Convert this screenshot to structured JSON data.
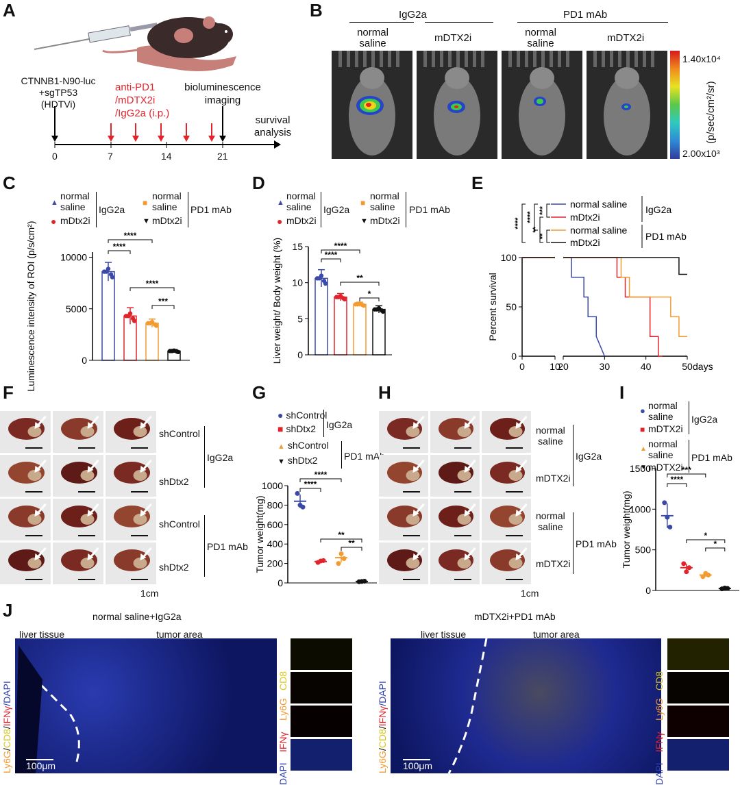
{
  "panels": {
    "A": "A",
    "B": "B",
    "C": "C",
    "D": "D",
    "E": "E",
    "F": "F",
    "G": "G",
    "H": "H",
    "I": "I",
    "J": "J"
  },
  "panelA": {
    "model": [
      "CTNNB1-N90-luc",
      "+sgTP53",
      "(HDTVi)"
    ],
    "treatment": [
      "anti-PD1",
      "/mDTX2i",
      "/IgG2a (i.p.)"
    ],
    "imaging": [
      "bioluminescence",
      "imaging"
    ],
    "survival": [
      "survival",
      "analysis"
    ],
    "ticks": [
      "0",
      "7",
      "14",
      "21"
    ]
  },
  "panelB": {
    "groups": [
      "IgG2a",
      "PD1 mAb"
    ],
    "conditions": [
      "normal\nsaline",
      "mDTX2i",
      "normal\nsaline",
      "mDTX2i"
    ],
    "cond_labels": [
      [
        "normal",
        "saline"
      ],
      [
        "mDTX2i"
      ],
      [
        "normal",
        "saline"
      ],
      [
        "mDTX2i"
      ]
    ],
    "scale_max": "1.40x10⁴",
    "scale_min": "2.00x10³",
    "scale_unit": "(p/sec/cm²/sr)"
  },
  "panelC": {
    "legend": {
      "g1": "normal",
      "g1b": "saline",
      "g2": "mDtx2i",
      "group1": "IgG2a",
      "g3": "normal",
      "g3b": "saline",
      "g4": "mDtx2i",
      "group2": "PD1 mAb"
    },
    "chart_data": {
      "type": "bar",
      "categories": [
        "normal saline IgG2a",
        "mDtx2i IgG2a",
        "normal saline PD1 mAb",
        "mDtx2i PD1 mAb"
      ],
      "values": [
        8600,
        4300,
        3600,
        900
      ],
      "errors": [
        900,
        800,
        400,
        150
      ],
      "ylabel": "Luminescence intensity of ROI (p/s/cm²)",
      "ylim": [
        0,
        10500
      ],
      "yticks": [
        "0",
        "5000",
        "10000"
      ],
      "colors": [
        "#3b49a8",
        "#e0242b",
        "#f39a31",
        "#111111"
      ],
      "sig": [
        "****",
        "****",
        "****",
        "***"
      ]
    }
  },
  "panelD": {
    "legend": {
      "g1": "normal",
      "g1b": "saline",
      "g2": "mDtx2i",
      "group1": "IgG2a",
      "g3": "normal",
      "g3b": "saline",
      "g4": "mDtx2i",
      "group2": "PD1 mAb"
    },
    "chart_data": {
      "type": "bar",
      "categories": [
        "normal saline IgG2a",
        "mDtx2i IgG2a",
        "normal saline PD1 mAb",
        "mDtx2i PD1 mAb"
      ],
      "values": [
        10.6,
        8.0,
        7.0,
        6.3
      ],
      "errors": [
        1.2,
        0.5,
        0.3,
        0.5
      ],
      "ylabel": "Liver weight/ Body weight (%)",
      "ylim": [
        0,
        15
      ],
      "yticks": [
        "0",
        "5",
        "10",
        "15"
      ],
      "colors": [
        "#3b49a8",
        "#e0242b",
        "#f39a31",
        "#111111"
      ],
      "sig": [
        "****",
        "****",
        "**",
        "*"
      ]
    }
  },
  "panelE": {
    "legend": [
      "normal saline",
      "mDtx2i",
      "normal saline",
      "mDtx2i"
    ],
    "groups": [
      "IgG2a",
      "PD1 mAb"
    ],
    "sig": [
      "****",
      "****",
      "***",
      "**",
      "**"
    ],
    "chart_data": {
      "type": "line",
      "ylabel": "Percent survival",
      "xunit": "days",
      "yticks": [
        "0",
        "50",
        "100"
      ],
      "xticks": [
        "0",
        "10",
        "20",
        "30",
        "40",
        "50"
      ],
      "series": [
        {
          "name": "normal saline",
          "group": "IgG2a",
          "color": "#3b49a8",
          "x": [
            0,
            22,
            22,
            25,
            25,
            26,
            26,
            28,
            28,
            30
          ],
          "y": [
            100,
            100,
            80,
            80,
            60,
            60,
            40,
            40,
            20,
            0
          ]
        },
        {
          "name": "mDtx2i",
          "group": "IgG2a",
          "color": "#e0242b",
          "x": [
            0,
            33,
            33,
            35,
            35,
            38,
            38,
            41,
            41,
            43,
            43,
            44
          ],
          "y": [
            100,
            100,
            80,
            80,
            60,
            60,
            60,
            60,
            20,
            20,
            0,
            0
          ]
        },
        {
          "name": "normal saline",
          "group": "PD1 mAb",
          "color": "#f39a31",
          "x": [
            0,
            34,
            34,
            36,
            36,
            38,
            38,
            46,
            46,
            48,
            48,
            50
          ],
          "y": [
            100,
            100,
            80,
            80,
            60,
            60,
            60,
            60,
            40,
            40,
            20,
            20
          ]
        },
        {
          "name": "mDtx2i",
          "group": "PD1 mAb",
          "color": "#111111",
          "x": [
            0,
            48,
            48,
            50
          ],
          "y": [
            100,
            100,
            83,
            83
          ]
        }
      ]
    }
  },
  "panelF": {
    "rows": [
      "shControl",
      "shDtx2",
      "shControl",
      "shDtx2"
    ],
    "groups": [
      "IgG2a",
      "PD1 mAb"
    ],
    "scale": "1cm"
  },
  "panelG": {
    "legend": [
      "shControl",
      "shDtx2",
      "shControl",
      "shDtx2"
    ],
    "groups": [
      "IgG2a",
      "PD1 mAb"
    ],
    "chart_data": {
      "type": "scatter",
      "ylabel": "Tumor weight(mg)",
      "ylim": [
        0,
        1000
      ],
      "yticks": [
        "0",
        "200",
        "400",
        "600",
        "800",
        "1000"
      ],
      "categories": [
        "shControl IgG2a",
        "shDtx2 IgG2a",
        "shControl PD1 mAb",
        "shDtx2 PD1 mAb"
      ],
      "means": [
        840,
        220,
        260,
        15
      ],
      "points": [
        [
          920,
          800,
          780
        ],
        [
          210,
          225,
          230
        ],
        [
          200,
          300,
          250
        ],
        [
          12,
          15,
          18
        ]
      ],
      "colors": [
        "#3b49a8",
        "#e0242b",
        "#f39a31",
        "#111111"
      ],
      "sig": [
        "****",
        "****",
        "**",
        "**"
      ]
    }
  },
  "panelH": {
    "rows": [
      [
        "normal",
        "saline"
      ],
      [
        "mDTX2i"
      ],
      [
        "normal",
        "saline"
      ],
      [
        "mDTX2i"
      ]
    ],
    "groups": [
      "IgG2a",
      "PD1 mAb"
    ],
    "scale": "1cm"
  },
  "panelI": {
    "legend": {
      "g1": "normal",
      "g1b": "saline",
      "g2": "mDTX2i",
      "group1": "IgG2a",
      "g3": "normal",
      "g3b": "saline",
      "g4": "mDTX2i",
      "group2": "PD1 mAb"
    },
    "chart_data": {
      "type": "scatter",
      "ylabel": "Tumor weight(mg)",
      "ylim": [
        0,
        1500
      ],
      "yticks": [
        "0",
        "500",
        "1000",
        "1500"
      ],
      "categories": [
        "normal saline IgG2a",
        "mDTX2i IgG2a",
        "normal saline PD1 mAb",
        "mDTX2i PD1 mAb"
      ],
      "means": [
        920,
        280,
        190,
        25
      ],
      "points": [
        [
          1080,
          900,
          780
        ],
        [
          330,
          230,
          280
        ],
        [
          170,
          210,
          190
        ],
        [
          20,
          30,
          25
        ]
      ],
      "colors": [
        "#3b49a8",
        "#e0242b",
        "#f39a31",
        "#111111"
      ],
      "sig": [
        "****",
        "***",
        "*",
        "*"
      ]
    }
  },
  "panelJ": {
    "left_title": "normal saline+IgG2a",
    "right_title": "mDTX2i+PD1 mAb",
    "liver": "liver tissue",
    "tumor": "tumor area",
    "scale": "100μm",
    "channels": [
      "CD8",
      "Ly6G",
      "IFNγ",
      "DAPI"
    ],
    "vlabel_parts": [
      "Ly6G",
      "/",
      "CD8",
      "/",
      "IFNγ",
      "/DAPI"
    ]
  }
}
